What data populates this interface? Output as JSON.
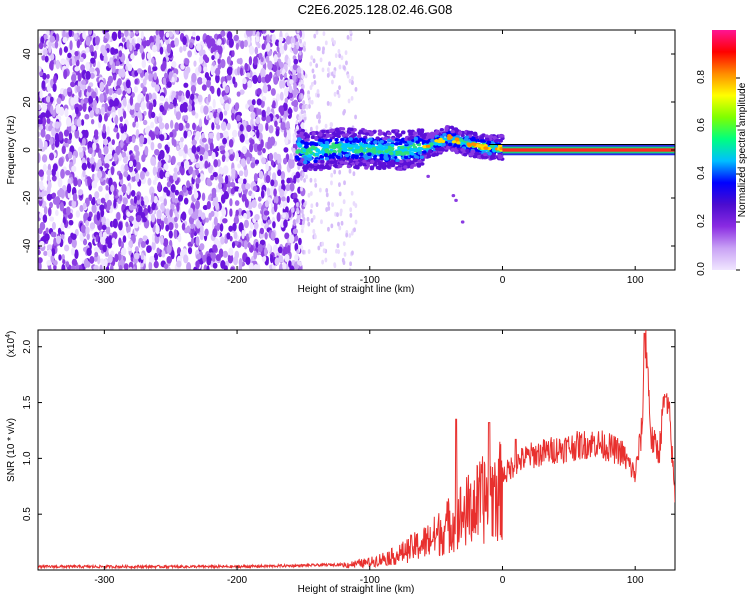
{
  "figure": {
    "title": "C2E6.2025.128.02.46.G08"
  },
  "chart_data": [
    {
      "type": "heatmap",
      "xlabel": "Height of straight line (km)",
      "ylabel": "Frequency (Hz)",
      "xlim": [
        -350,
        130
      ],
      "ylim": [
        -50,
        50
      ],
      "xticks": [
        -300,
        -200,
        -100,
        0,
        100
      ],
      "yticks": [
        -40,
        -20,
        0,
        20,
        40
      ],
      "colorbar": {
        "label": "Normalized spectral amplitude",
        "range": [
          0,
          1
        ],
        "ticks": [
          "0.0",
          "0.2",
          "0.4",
          "0.6",
          "0.8"
        ],
        "colormap": [
          "#f0e6ff",
          "#c9a2f5",
          "#8a2be2",
          "#4b0ccf",
          "#0000ff",
          "#00bfff",
          "#00ff7f",
          "#7fff00",
          "#ffff00",
          "#ff8c00",
          "#ff0000",
          "#ff1493"
        ]
      },
      "regions": [
        {
          "x": [
            -350,
            -150
          ],
          "frequency": [
            -50,
            50
          ],
          "amplitude": [
            0.0,
            0.1
          ],
          "description_level": "noise"
        },
        {
          "x": [
            -150,
            -110
          ],
          "frequency": [
            -50,
            50
          ],
          "amplitude": [
            0.0,
            0.05
          ],
          "description_level": "sparse"
        },
        {
          "x": [
            -155,
            0
          ],
          "frequency": [
            -8,
            8
          ],
          "amplitude": [
            0.1,
            0.5
          ]
        },
        {
          "x": [
            0,
            130
          ],
          "frequency": [
            -1,
            1
          ],
          "amplitude": [
            0.7,
            1.0
          ]
        }
      ],
      "peak_track": {
        "x": [
          -150,
          -120,
          -90,
          -70,
          -55,
          -40,
          -30,
          -20,
          -10,
          0,
          20,
          60,
          100,
          130
        ],
        "frequency": [
          -1,
          1,
          0,
          0,
          2,
          5,
          3,
          2,
          1,
          1,
          0.5,
          0.5,
          0.5,
          0.5
        ]
      }
    },
    {
      "type": "line",
      "xlabel": "Height of straight line (km)",
      "ylabel": "SNR (10 * v/v)",
      "y_multiplier": "(x10",
      "y_multiplier_exp": "4",
      "y_multiplier_close": ")",
      "xlim": [
        -350,
        130
      ],
      "ylim": [
        0,
        2.15
      ],
      "xticks": [
        -300,
        -200,
        -100,
        0,
        100
      ],
      "yticks": [
        0.5,
        1.0,
        1.5,
        2.0
      ],
      "ytick_labels": [
        "0.5",
        "1.0",
        "1.5",
        "2.0"
      ],
      "color": "#e8302e",
      "series": [
        {
          "x": [
            -350,
            -300,
            -250,
            -200,
            -150,
            -120,
            -100,
            -90,
            -80,
            -70,
            -60,
            -50,
            -40,
            -35,
            -30,
            -20,
            -10,
            0,
            10,
            20,
            30,
            40,
            50,
            60,
            70,
            80,
            90,
            95,
            100,
            105,
            108,
            112,
            118,
            122,
            126,
            130
          ],
          "y": [
            0.03,
            0.03,
            0.03,
            0.03,
            0.04,
            0.05,
            0.08,
            0.12,
            0.15,
            0.22,
            0.28,
            0.36,
            0.48,
            0.55,
            0.58,
            0.68,
            0.78,
            0.84,
            0.96,
            1.02,
            1.05,
            1.08,
            1.1,
            1.12,
            1.14,
            1.1,
            1.05,
            0.95,
            0.85,
            1.25,
            2.12,
            1.18,
            1.05,
            1.55,
            1.35,
            0.65
          ],
          "spikes": [
            {
              "x": -35,
              "y": 1.35
            },
            {
              "x": -10,
              "y": 1.32
            },
            {
              "x": 10,
              "y": 1.17
            },
            {
              "x": 107,
              "y": 2.12
            },
            {
              "x": 123,
              "y": 1.55
            }
          ]
        }
      ]
    }
  ]
}
